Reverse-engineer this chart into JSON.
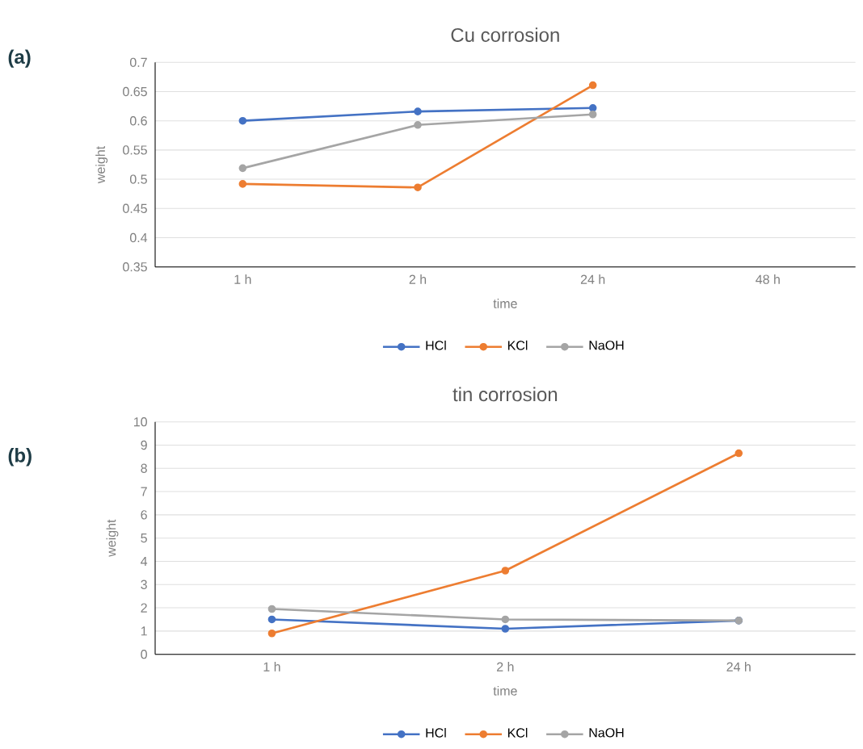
{
  "chart_data": [
    {
      "type": "line",
      "title": "Cu corrosion",
      "xlabel": "time",
      "ylabel": "weight",
      "annotations": [
        "(a)"
      ],
      "categories": [
        "1 h",
        "2 h",
        "24 h",
        "48 h"
      ],
      "series": [
        {
          "name": "HCl",
          "color": "#4472c4",
          "values": [
            0.6,
            0.616,
            0.622,
            null
          ]
        },
        {
          "name": "KCl",
          "color": "#ed7d31",
          "values": [
            0.492,
            0.486,
            0.661,
            null
          ]
        },
        {
          "name": "NaOH",
          "color": "#a5a5a5",
          "values": [
            0.519,
            0.593,
            0.611,
            null
          ]
        }
      ],
      "ylim": [
        0.35,
        0.7
      ],
      "yticks": [
        0.35,
        0.4,
        0.45,
        0.5,
        0.55,
        0.6,
        0.65,
        0.7
      ],
      "grid": "y",
      "legend": "bottom",
      "marker": "circle",
      "line_style": "solid"
    },
    {
      "type": "line",
      "title": "tin corrosion",
      "xlabel": "time",
      "ylabel": "weight",
      "annotations": [
        "(b)"
      ],
      "categories": [
        "1 h",
        "2 h",
        "24 h"
      ],
      "series": [
        {
          "name": "HCl",
          "color": "#4472c4",
          "values": [
            1.5,
            1.1,
            1.45
          ]
        },
        {
          "name": "KCl",
          "color": "#ed7d31",
          "values": [
            0.9,
            3.6,
            8.65
          ]
        },
        {
          "name": "NaOH",
          "color": "#a5a5a5",
          "values": [
            1.95,
            1.5,
            1.45
          ]
        }
      ],
      "ylim": [
        0,
        10
      ],
      "yticks": [
        0,
        1,
        2,
        3,
        4,
        5,
        6,
        7,
        8,
        9,
        10
      ],
      "grid": "y",
      "legend": "bottom",
      "marker": "circle",
      "line_style": "solid"
    }
  ]
}
